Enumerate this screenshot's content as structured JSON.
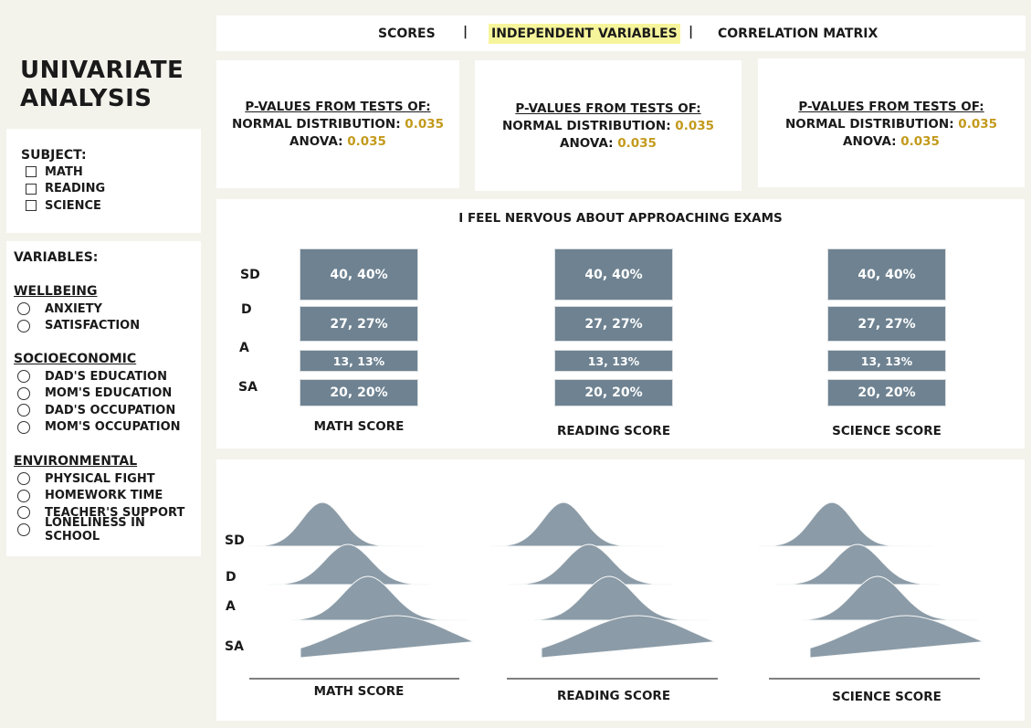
{
  "sidebar": {
    "title": "UNIVARIATE ANALYSIS",
    "subject": {
      "heading": "SUBJECT:",
      "options": [
        "MATH",
        "READING",
        "SCIENCE"
      ]
    },
    "variables": {
      "heading": "VARIABLES:",
      "groups": [
        {
          "name": "WELLBEING",
          "options": [
            "ANXIETY",
            "SATISFACTION"
          ]
        },
        {
          "name": "SOCIOECONOMIC",
          "options": [
            "DAD'S EDUCATION",
            "MOM'S EDUCATION",
            "DAD'S OCCUPATION",
            "MOM'S OCCUPATION"
          ]
        },
        {
          "name": "ENVIRONMENTAL",
          "options": [
            "PHYSICAL FIGHT",
            "HOMEWORK TIME",
            "TEACHER'S SUPPORT",
            "LONELINESS IN SCHOOL"
          ]
        }
      ]
    }
  },
  "nav": {
    "tabs": [
      "SCORES",
      "INDEPENDENT VARIABLES",
      "CORRELATION MATRIX"
    ],
    "separator": "|",
    "active": "INDEPENDENT VARIABLES"
  },
  "pvalue_cards": [
    {
      "heading": "P-VALUES FROM TESTS OF:",
      "normal_label": "NORMAL DISTRIBUTION:",
      "normal_value": "0.035",
      "anova_label": "ANOVA:",
      "anova_value": "0.035"
    },
    {
      "heading": "P-VALUES FROM TESTS OF:",
      "normal_label": "NORMAL DISTRIBUTION:",
      "normal_value": "0.035",
      "anova_label": "ANOVA:",
      "anova_value": "0.035"
    },
    {
      "heading": "P-VALUES FROM TESTS OF:",
      "normal_label": "NORMAL DISTRIBUTION:",
      "normal_value": "0.035",
      "anova_label": "ANOVA:",
      "anova_value": "0.035"
    }
  ],
  "colors": {
    "background": "#f3f3ec",
    "panel": "#ffffff",
    "accent_highlight": "#f7f59c",
    "pvalue": "#c39a1c",
    "bar": "#6e8291",
    "ridge": "#8b9ba7"
  },
  "chart_data": [
    {
      "type": "bar",
      "title": "I FEEL NERVOUS ABOUT APPROACHING EXAMS",
      "categories": [
        "SD",
        "D",
        "A",
        "SA"
      ],
      "panels": [
        {
          "xlabel": "MATH SCORE",
          "counts": [
            40,
            27,
            13,
            20
          ],
          "labels": [
            "40, 40%",
            "27, 27%",
            "13, 13%",
            "20, 20%"
          ]
        },
        {
          "xlabel": "READING SCORE",
          "counts": [
            40,
            27,
            13,
            20
          ],
          "labels": [
            "40, 40%",
            "27, 27%",
            "13, 13%",
            "20, 20%"
          ]
        },
        {
          "xlabel": "SCIENCE SCORE",
          "counts": [
            40,
            27,
            13,
            20
          ],
          "labels": [
            "40, 40%",
            "27, 27%",
            "13, 13%",
            "20, 20%"
          ]
        }
      ]
    },
    {
      "type": "area",
      "subtype": "ridgeline",
      "categories": [
        "SD",
        "D",
        "A",
        "SA"
      ],
      "panels": [
        {
          "xlabel": "MATH SCORE"
        },
        {
          "xlabel": "READING SCORE"
        },
        {
          "xlabel": "SCIENCE SCORE"
        }
      ]
    }
  ]
}
